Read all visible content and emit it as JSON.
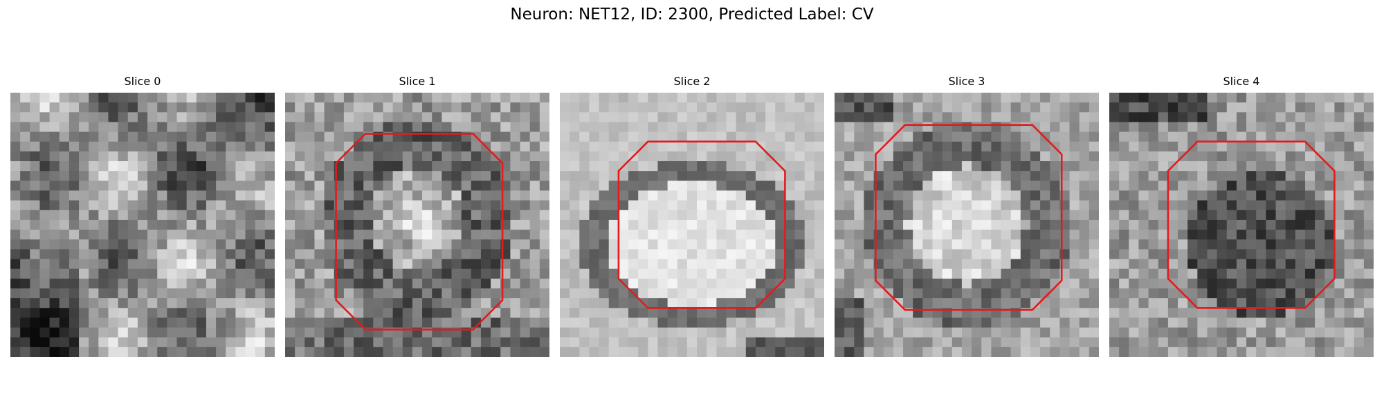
{
  "figure": {
    "title": "Neuron: NET12, ID: 2300, Predicted Label: CV"
  },
  "colors": {
    "background": "#ffffff",
    "contour": "#e41a1c",
    "text": "#000000"
  },
  "grid_size": 27,
  "panels": [
    {
      "label": "Slice 0",
      "contour": false
    },
    {
      "label": "Slice 1",
      "contour": true
    },
    {
      "label": "Slice 2",
      "contour": true
    },
    {
      "label": "Slice 3",
      "contour": true
    },
    {
      "label": "Slice 4",
      "contour": true
    }
  ]
}
